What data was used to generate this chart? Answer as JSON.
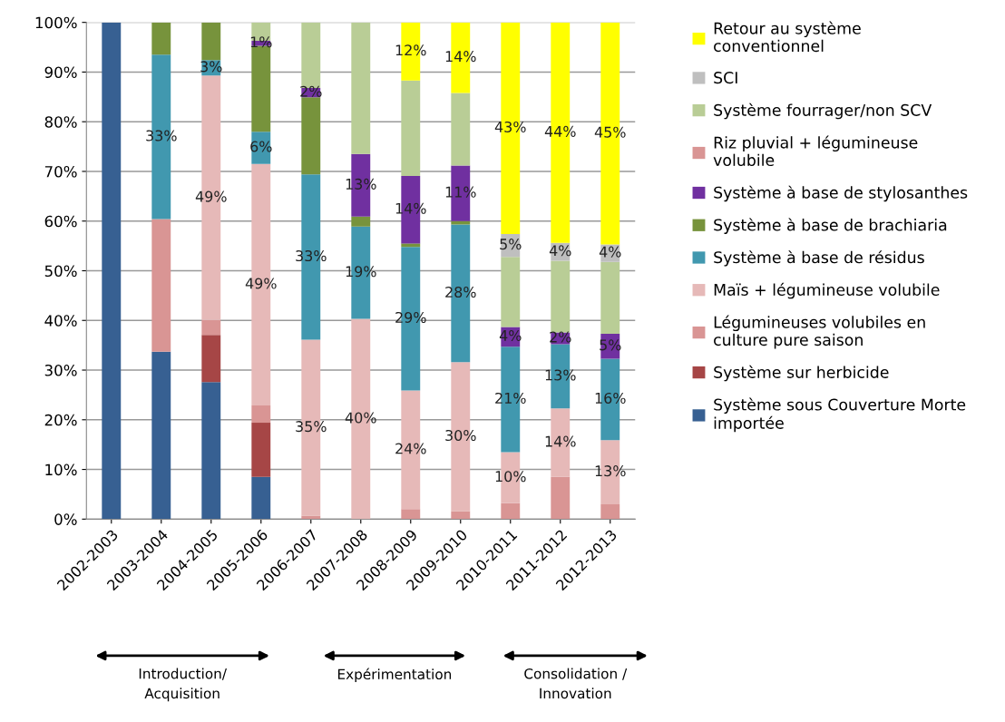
{
  "chart_data": {
    "type": "bar",
    "stacked": true,
    "categories": [
      "2002-2003",
      "2003-2004",
      "2004-2005",
      "2005-2006",
      "2006-2007",
      "2007-2008",
      "2008-2009",
      "2009-2010",
      "2010-2011",
      "2011-2012",
      "2012-2013"
    ],
    "ylim": [
      0,
      100
    ],
    "yticks": [
      {
        "value": 0,
        "label": "0%"
      },
      {
        "value": 10,
        "label": "10%"
      },
      {
        "value": 20,
        "label": "20%"
      },
      {
        "value": 30,
        "label": "30%"
      },
      {
        "value": 40,
        "label": "40%"
      },
      {
        "value": 50,
        "label": "50%"
      },
      {
        "value": 60,
        "label": "60%"
      },
      {
        "value": 70,
        "label": "70%"
      },
      {
        "value": 80,
        "label": "80%"
      },
      {
        "value": 90,
        "label": "90%"
      },
      {
        "value": 100,
        "label": "100%"
      }
    ],
    "grid": "y",
    "legend": "right",
    "series": [
      {
        "name": "Système sous Couverture Morte importée",
        "color": "#376092",
        "values": [
          100,
          33.7,
          27.6,
          8.5,
          0,
          0,
          0,
          0,
          0,
          0,
          0
        ],
        "value_labels": [
          null,
          null,
          null,
          null,
          null,
          null,
          null,
          null,
          null,
          null,
          null
        ]
      },
      {
        "name": "Système sur herbicide",
        "color": "#a64646",
        "values": [
          0,
          0,
          9.5,
          10.9,
          0,
          0,
          0,
          0,
          0,
          0,
          0
        ],
        "value_labels": [
          null,
          null,
          null,
          null,
          null,
          null,
          null,
          null,
          null,
          null,
          null
        ]
      },
      {
        "name": "Légumineuses volubiles en culture pure saison",
        "color": "#d99594",
        "values": [
          0,
          26.7,
          3.0,
          3.5,
          0.7,
          0,
          2.0,
          1.6,
          3.2,
          8.5,
          3.0
        ],
        "value_labels": [
          null,
          null,
          null,
          null,
          null,
          null,
          null,
          null,
          null,
          null,
          null
        ]
      },
      {
        "name": "Maïs + légumineuse volubile",
        "color": "#e6b9b8",
        "values": [
          0,
          0,
          49.2,
          48.6,
          35.4,
          40.3,
          23.9,
          30.0,
          10.3,
          13.8,
          12.9
        ],
        "value_labels": [
          null,
          null,
          "49%",
          "49%",
          "35%",
          "40%",
          "24%",
          "30%",
          "10%",
          "14%",
          "13%"
        ]
      },
      {
        "name": "Système à base de résidus",
        "color": "#4198af",
        "values": [
          0,
          33.1,
          3.1,
          6.5,
          33.3,
          18.6,
          28.9,
          27.7,
          21.2,
          12.9,
          16.4
        ],
        "value_labels": [
          null,
          "33%",
          "3%",
          "6%",
          "33%",
          "19%",
          "29%",
          "28%",
          "21%",
          "13%",
          "16%"
        ]
      },
      {
        "name": "Système à base de brachiaria",
        "color": "#77933c",
        "values": [
          0,
          6.5,
          7.6,
          17.3,
          15.5,
          2.0,
          0.7,
          0.7,
          0,
          0,
          0
        ],
        "value_labels": [
          null,
          null,
          null,
          null,
          null,
          null,
          null,
          null,
          null,
          null,
          null
        ]
      },
      {
        "name": "Système à base de stylosanthes",
        "color": "#7030a0",
        "values": [
          0,
          0,
          0,
          1,
          1.9,
          12.6,
          13.6,
          11.2,
          4.0,
          2.4,
          5.0
        ],
        "value_labels": [
          null,
          null,
          null,
          "1%",
          "2%",
          "13%",
          "14%",
          "11%",
          "4%",
          "2%",
          "5%"
        ]
      },
      {
        "name": "Riz pluvial + légumineuse volubile",
        "color": "#d99594",
        "values": [
          0,
          0,
          0,
          0,
          0,
          0,
          0,
          0,
          0,
          0,
          0
        ],
        "value_labels": [
          null,
          null,
          null,
          null,
          null,
          null,
          null,
          null,
          null,
          null,
          null
        ]
      },
      {
        "name": "Système fourrager/non SCV",
        "color": "#b9cd96",
        "values": [
          0,
          0,
          0,
          3.7,
          13.2,
          26.5,
          19.2,
          14.6,
          14.1,
          14.4,
          14.5
        ],
        "value_labels": [
          null,
          null,
          null,
          null,
          null,
          null,
          null,
          null,
          null,
          null,
          null
        ]
      },
      {
        "name": "SCI",
        "color": "#bfbfbf",
        "values": [
          0,
          0,
          0,
          0,
          0,
          0,
          0,
          0,
          4.6,
          3.6,
          3.5
        ],
        "value_labels": [
          null,
          null,
          null,
          null,
          null,
          null,
          null,
          null,
          "5%",
          "4%",
          "4%"
        ]
      },
      {
        "name": "Retour au système conventionnel",
        "color": "#ffff00",
        "values": [
          0,
          0,
          0,
          0,
          0,
          0,
          11.7,
          14.2,
          42.6,
          44.4,
          44.7
        ],
        "value_labels": [
          null,
          null,
          null,
          null,
          null,
          null,
          "12%",
          "14%",
          "43%",
          "44%",
          "45%"
        ]
      }
    ],
    "annotations": [
      "Introduction/ Acquisition",
      "Expérimentation",
      "Consolidation / Innovation"
    ]
  }
}
